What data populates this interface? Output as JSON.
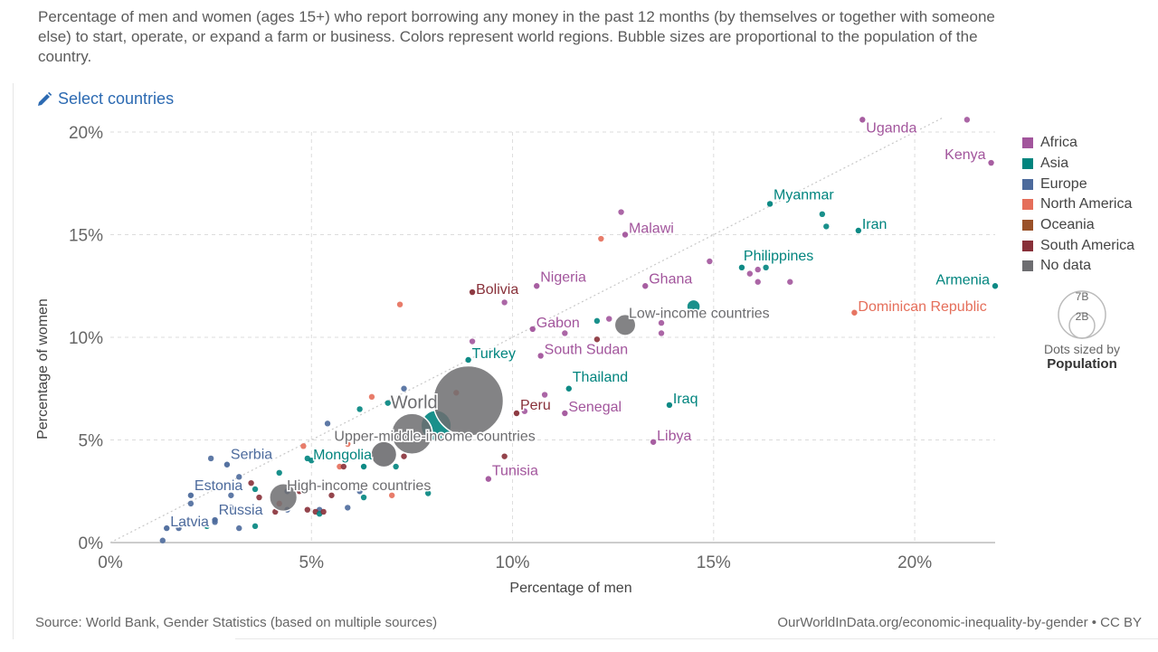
{
  "subtitle": "Percentage of men and women (ages 15+) who report borrowing any money in the past 12 months (by themselves or together with someone else) to start, operate, or expand a farm or business. Colors represent world regions. Bubble sizes are proportional to the population of the country.",
  "controls": {
    "select_countries": "Select countries"
  },
  "legend": {
    "regions": [
      {
        "name": "Africa",
        "color": "#a2559c"
      },
      {
        "name": "Asia",
        "color": "#00847e"
      },
      {
        "name": "Europe",
        "color": "#4c6a9c"
      },
      {
        "name": "North America",
        "color": "#e56e5a"
      },
      {
        "name": "Oceania",
        "color": "#9a5129"
      },
      {
        "name": "South America",
        "color": "#883039"
      },
      {
        "name": "No data",
        "color": "#6d6d70"
      }
    ],
    "size_large": "7B",
    "size_small": "2B",
    "size_caption": "Dots sized by",
    "size_metric": "Population"
  },
  "source": "Source: World Bank, Gender Statistics (based on multiple sources)",
  "attribution": "OurWorldInData.org/economic-inequality-by-gender • CC BY",
  "chart_data": {
    "type": "scatter",
    "xlabel": "Percentage of men",
    "ylabel": "Percentage of women",
    "xlim": [
      0,
      22
    ],
    "ylim": [
      0,
      20
    ],
    "xticks": [
      "0%",
      "5%",
      "10%",
      "15%",
      "20%"
    ],
    "yticks": [
      "0%",
      "5%",
      "10%",
      "15%",
      "20%"
    ],
    "grid": true,
    "diagonal_reference_line": true,
    "labeled_points": [
      {
        "label": "Uganda",
        "x": 18.7,
        "y": 20.6,
        "region": "Africa"
      },
      {
        "label": "Kenya",
        "x": 21.9,
        "y": 18.5,
        "region": "Africa"
      },
      {
        "label": "Myanmar",
        "x": 16.4,
        "y": 16.5,
        "region": "Asia"
      },
      {
        "label": "Iran",
        "x": 18.6,
        "y": 15.2,
        "region": "Asia"
      },
      {
        "label": "Malawi",
        "x": 12.8,
        "y": 15.0,
        "region": "Africa"
      },
      {
        "label": "Philippines",
        "x": 15.7,
        "y": 13.4,
        "region": "Asia"
      },
      {
        "label": "Armenia",
        "x": 22.0,
        "y": 12.5,
        "region": "Asia"
      },
      {
        "label": "Bolivia",
        "x": 9.0,
        "y": 12.2,
        "region": "South America"
      },
      {
        "label": "Nigeria",
        "x": 10.6,
        "y": 12.5,
        "region": "Africa"
      },
      {
        "label": "Ghana",
        "x": 13.3,
        "y": 12.5,
        "region": "Africa"
      },
      {
        "label": "Dominican Republic",
        "x": 18.5,
        "y": 11.2,
        "region": "North America"
      },
      {
        "label": "Low-income countries",
        "x": 12.8,
        "y": 10.6,
        "region": "No data",
        "pop": 0.7
      },
      {
        "label": "Gabon",
        "x": 10.5,
        "y": 10.4,
        "region": "Africa"
      },
      {
        "label": "South Sudan",
        "x": 10.7,
        "y": 9.1,
        "region": "Africa"
      },
      {
        "label": "Turkey",
        "x": 8.9,
        "y": 8.9,
        "region": "Asia"
      },
      {
        "label": "Thailand",
        "x": 11.4,
        "y": 7.5,
        "region": "Asia"
      },
      {
        "label": "Iraq",
        "x": 13.9,
        "y": 6.7,
        "region": "Asia"
      },
      {
        "label": "World",
        "x": 8.9,
        "y": 6.9,
        "region": "No data",
        "pop": 7.7
      },
      {
        "label": "Peru",
        "x": 10.1,
        "y": 6.3,
        "region": "South America"
      },
      {
        "label": "Senegal",
        "x": 11.3,
        "y": 6.3,
        "region": "Africa"
      },
      {
        "label": "Upper-middle-income countries",
        "x": 7.5,
        "y": 5.3,
        "region": "No data",
        "pop": 2.6
      },
      {
        "label": "Libya",
        "x": 13.5,
        "y": 4.9,
        "region": "Africa"
      },
      {
        "label": "Mongolia",
        "x": 6.3,
        "y": 3.7,
        "region": "Asia"
      },
      {
        "label": "Serbia",
        "x": 2.9,
        "y": 3.8,
        "region": "Europe"
      },
      {
        "label": "Tunisia",
        "x": 9.4,
        "y": 3.1,
        "region": "Africa"
      },
      {
        "label": "High-income countries",
        "x": 4.3,
        "y": 2.2,
        "region": "No data",
        "pop": 1.2
      },
      {
        "label": "Estonia",
        "x": 2.0,
        "y": 2.3,
        "region": "Europe"
      },
      {
        "label": "Russia",
        "x": 2.6,
        "y": 1.1,
        "region": "Europe"
      },
      {
        "label": "Latvia",
        "x": 1.4,
        "y": 0.7,
        "region": "Europe"
      }
    ],
    "unlabeled_points": [
      {
        "x": 21.3,
        "y": 20.6,
        "region": "Africa"
      },
      {
        "x": 12.7,
        "y": 16.1,
        "region": "Africa"
      },
      {
        "x": 12.2,
        "y": 14.8,
        "region": "North America"
      },
      {
        "x": 17.7,
        "y": 16.0,
        "region": "Asia"
      },
      {
        "x": 17.8,
        "y": 15.4,
        "region": "Asia"
      },
      {
        "x": 14.9,
        "y": 13.7,
        "region": "Africa"
      },
      {
        "x": 16.3,
        "y": 13.4,
        "region": "Asia"
      },
      {
        "x": 15.9,
        "y": 13.1,
        "region": "Africa"
      },
      {
        "x": 16.1,
        "y": 13.3,
        "region": "Africa"
      },
      {
        "x": 16.1,
        "y": 12.7,
        "region": "Africa"
      },
      {
        "x": 16.9,
        "y": 12.7,
        "region": "Africa"
      },
      {
        "x": 7.2,
        "y": 11.6,
        "region": "North America"
      },
      {
        "x": 9.8,
        "y": 11.7,
        "region": "Africa"
      },
      {
        "x": 14.5,
        "y": 11.5,
        "region": "Asia",
        "pop": 0.27
      },
      {
        "x": 12.1,
        "y": 10.8,
        "region": "Asia"
      },
      {
        "x": 12.4,
        "y": 10.9,
        "region": "Africa"
      },
      {
        "x": 13.7,
        "y": 10.7,
        "region": "Africa"
      },
      {
        "x": 13.7,
        "y": 10.2,
        "region": "Africa"
      },
      {
        "x": 11.3,
        "y": 10.2,
        "region": "Africa"
      },
      {
        "x": 12.1,
        "y": 9.9,
        "region": "South America"
      },
      {
        "x": 9.0,
        "y": 9.8,
        "region": "Africa"
      },
      {
        "x": 7.3,
        "y": 7.5,
        "region": "Europe"
      },
      {
        "x": 8.6,
        "y": 7.3,
        "region": "North America"
      },
      {
        "x": 10.8,
        "y": 7.2,
        "region": "Africa"
      },
      {
        "x": 6.5,
        "y": 7.1,
        "region": "North America"
      },
      {
        "x": 6.9,
        "y": 6.8,
        "region": "Asia"
      },
      {
        "x": 6.2,
        "y": 6.5,
        "region": "Asia"
      },
      {
        "x": 10.3,
        "y": 6.4,
        "region": "Africa"
      },
      {
        "x": 5.4,
        "y": 5.8,
        "region": "Europe"
      },
      {
        "x": 8.1,
        "y": 5.7,
        "region": "Asia",
        "pop": 1.4
      },
      {
        "x": 6.8,
        "y": 4.3,
        "region": "No data",
        "pop": 1.0
      },
      {
        "x": 4.8,
        "y": 4.7,
        "region": "North America"
      },
      {
        "x": 5.9,
        "y": 4.8,
        "region": "North America"
      },
      {
        "x": 4.9,
        "y": 4.1,
        "region": "Asia"
      },
      {
        "x": 5.0,
        "y": 4.0,
        "region": "Asia"
      },
      {
        "x": 2.5,
        "y": 4.1,
        "region": "Europe"
      },
      {
        "x": 7.3,
        "y": 4.2,
        "region": "South America"
      },
      {
        "x": 7.1,
        "y": 3.7,
        "region": "Asia"
      },
      {
        "x": 9.8,
        "y": 4.2,
        "region": "South America"
      },
      {
        "x": 4.2,
        "y": 3.4,
        "region": "Asia"
      },
      {
        "x": 3.2,
        "y": 3.2,
        "region": "Europe"
      },
      {
        "x": 3.5,
        "y": 2.9,
        "region": "South America"
      },
      {
        "x": 3.6,
        "y": 2.6,
        "region": "Asia"
      },
      {
        "x": 5.7,
        "y": 3.7,
        "region": "North America"
      },
      {
        "x": 5.8,
        "y": 3.7,
        "region": "South America"
      },
      {
        "x": 4.4,
        "y": 2.5,
        "region": "Europe"
      },
      {
        "x": 4.7,
        "y": 2.5,
        "region": "South America"
      },
      {
        "x": 3.0,
        "y": 2.3,
        "region": "Europe"
      },
      {
        "x": 3.7,
        "y": 2.2,
        "region": "South America"
      },
      {
        "x": 5.5,
        "y": 2.3,
        "region": "South America"
      },
      {
        "x": 6.2,
        "y": 2.5,
        "region": "Europe"
      },
      {
        "x": 6.3,
        "y": 2.2,
        "region": "Asia"
      },
      {
        "x": 7.0,
        "y": 2.3,
        "region": "North America"
      },
      {
        "x": 7.9,
        "y": 2.4,
        "region": "Asia"
      },
      {
        "x": 2.0,
        "y": 1.9,
        "region": "Europe"
      },
      {
        "x": 4.2,
        "y": 1.9,
        "region": "North America"
      },
      {
        "x": 4.1,
        "y": 1.5,
        "region": "South America"
      },
      {
        "x": 4.4,
        "y": 1.6,
        "region": "Europe"
      },
      {
        "x": 4.9,
        "y": 1.6,
        "region": "South America"
      },
      {
        "x": 5.2,
        "y": 1.6,
        "region": "Europe"
      },
      {
        "x": 5.1,
        "y": 1.5,
        "region": "South America"
      },
      {
        "x": 5.2,
        "y": 1.4,
        "region": "Asia"
      },
      {
        "x": 5.3,
        "y": 1.5,
        "region": "South America"
      },
      {
        "x": 3.0,
        "y": 1.7,
        "region": "Europe"
      },
      {
        "x": 5.9,
        "y": 1.7,
        "region": "Europe"
      },
      {
        "x": 2.6,
        "y": 1.0,
        "region": "Europe"
      },
      {
        "x": 2.4,
        "y": 0.8,
        "region": "Asia"
      },
      {
        "x": 3.2,
        "y": 0.7,
        "region": "Europe"
      },
      {
        "x": 3.6,
        "y": 0.8,
        "region": "Asia"
      },
      {
        "x": 1.7,
        "y": 0.7,
        "region": "Europe"
      },
      {
        "x": 1.3,
        "y": 0.1,
        "region": "Europe"
      }
    ]
  }
}
